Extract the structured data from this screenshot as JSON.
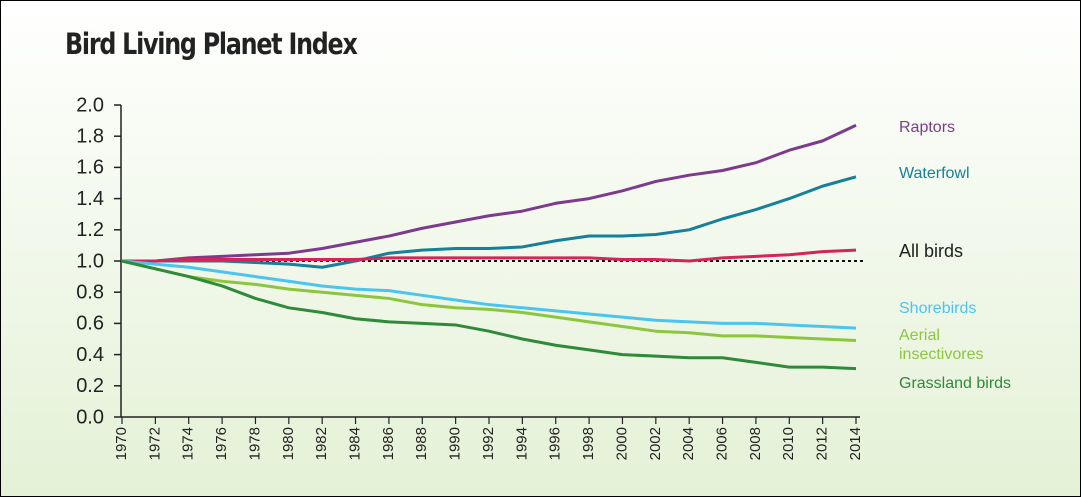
{
  "chart_data": {
    "type": "line",
    "title": "Bird Living Planet Index",
    "x": [
      1970,
      1972,
      1974,
      1976,
      1978,
      1980,
      1982,
      1984,
      1986,
      1988,
      1990,
      1992,
      1994,
      1996,
      1998,
      2000,
      2002,
      2004,
      2006,
      2008,
      2010,
      2012,
      2014
    ],
    "xlim": [
      1970,
      2014
    ],
    "xticks": [
      1970,
      1972,
      1974,
      1976,
      1978,
      1980,
      1982,
      1984,
      1986,
      1988,
      1990,
      1992,
      1994,
      1996,
      1998,
      2000,
      2002,
      2004,
      2006,
      2008,
      2010,
      2012,
      2014
    ],
    "ylim": [
      0,
      2
    ],
    "yticks": [
      {
        "value": 0,
        "label": "0.0"
      },
      0.2,
      0.4,
      0.6,
      0.8,
      {
        "value": 1,
        "label": "1.0"
      },
      1.2,
      1.4,
      1.6,
      1.8,
      {
        "value": 2,
        "label": "2.0"
      }
    ],
    "reference_line": 1,
    "series": [
      {
        "name": "Raptors",
        "color": "#7d3b8e",
        "values": [
          1.0,
          1.0,
          1.02,
          1.03,
          1.04,
          1.05,
          1.08,
          1.12,
          1.16,
          1.21,
          1.25,
          1.29,
          1.32,
          1.37,
          1.4,
          1.45,
          1.51,
          1.55,
          1.58,
          1.63,
          1.71,
          1.77,
          1.87
        ]
      },
      {
        "name": "Waterfowl",
        "color": "#16809b",
        "values": [
          1.0,
          1.0,
          1.0,
          1.0,
          0.99,
          0.98,
          0.96,
          1.0,
          1.05,
          1.07,
          1.08,
          1.08,
          1.09,
          1.13,
          1.16,
          1.16,
          1.17,
          1.2,
          1.27,
          1.33,
          1.4,
          1.48,
          1.54
        ]
      },
      {
        "name": "All birds",
        "color": "#d5245a",
        "values": [
          1.0,
          1.0,
          1.01,
          1.01,
          1.01,
          1.01,
          1.01,
          1.01,
          1.02,
          1.02,
          1.02,
          1.02,
          1.02,
          1.02,
          1.02,
          1.01,
          1.01,
          1.0,
          1.02,
          1.03,
          1.04,
          1.06,
          1.07
        ]
      },
      {
        "name": "Shorebirds",
        "color": "#4cc4f0",
        "values": [
          1.0,
          0.98,
          0.96,
          0.93,
          0.9,
          0.87,
          0.84,
          0.82,
          0.81,
          0.78,
          0.75,
          0.72,
          0.7,
          0.68,
          0.66,
          0.64,
          0.62,
          0.61,
          0.6,
          0.6,
          0.59,
          0.58,
          0.57
        ]
      },
      {
        "name": "Aerial insectivores",
        "color": "#8cc63f",
        "values": [
          1.0,
          0.95,
          0.9,
          0.87,
          0.85,
          0.82,
          0.8,
          0.78,
          0.76,
          0.72,
          0.7,
          0.69,
          0.67,
          0.64,
          0.61,
          0.58,
          0.55,
          0.54,
          0.52,
          0.52,
          0.51,
          0.5,
          0.49
        ]
      },
      {
        "name": "Grassland birds",
        "color": "#2f8a3a",
        "values": [
          1.0,
          0.95,
          0.9,
          0.84,
          0.76,
          0.7,
          0.67,
          0.63,
          0.61,
          0.6,
          0.59,
          0.55,
          0.5,
          0.46,
          0.43,
          0.4,
          0.39,
          0.38,
          0.38,
          0.35,
          0.32,
          0.32,
          0.31
        ]
      }
    ]
  }
}
